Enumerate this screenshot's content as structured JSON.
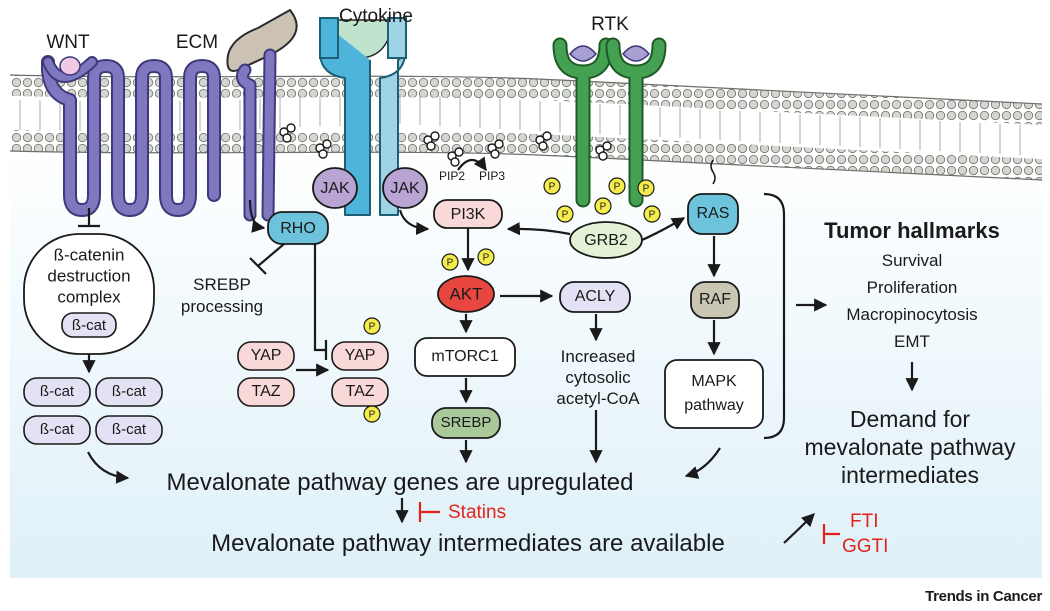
{
  "receptors": {
    "wnt": "WNT",
    "ecm": "ECM",
    "cytokine": "Cytokine",
    "rtk": "RTK"
  },
  "lipids": {
    "pip2": "PIP2",
    "pip3": "PIP3"
  },
  "nodes": {
    "jak": "JAK",
    "rho": "RHO",
    "pi3k": "PI3K",
    "akt": "AKT",
    "grb2": "GRB2",
    "ras": "RAS",
    "raf": "RAF",
    "acly": "ACLY",
    "mtorc1": "mTORC1",
    "srebp": "SREBP",
    "yap": "YAP",
    "taz": "TAZ",
    "bcat": "ß-cat",
    "phospho": "P"
  },
  "text": {
    "destruction_line1": "ß-catenin",
    "destruction_line2": "destruction",
    "destruction_line3": "complex",
    "srebp_proc_line1": "SREBP",
    "srebp_proc_line2": "processing",
    "acetyl_line1": "Increased",
    "acetyl_line2": "cytosolic",
    "acetyl_line3": "acetyl-CoA",
    "mapk_line1": "MAPK",
    "mapk_line2": "pathway",
    "upregulated": "Mevalonate pathway genes are upregulated",
    "available": "Mevalonate pathway intermediates are available",
    "statins": "Statins",
    "fti": "FTI",
    "ggti": "GGTI"
  },
  "hallmarks": {
    "title": "Tumor hallmarks",
    "items": [
      "Survival",
      "Proliferation",
      "Macropinocytosis",
      "EMT"
    ],
    "demand_line1": "Demand for",
    "demand_line2": "mevalonate pathway",
    "demand_line3": "intermediates"
  },
  "footer": "Trends in Cancer",
  "colors": {
    "receptor_purple": "#7f78c0",
    "cytokine_blue": "#4fb4d9",
    "rtk_green": "#45a152",
    "node_blue": "#6ec3dc",
    "akt_red": "#e7473f",
    "pink": "#f9d8d8",
    "lavender": "#e3e1f4",
    "cyto_bg": "#e6f4fa",
    "phospho_yellow": "#f4ec4c",
    "inhibitor_red": "#e2231a"
  }
}
